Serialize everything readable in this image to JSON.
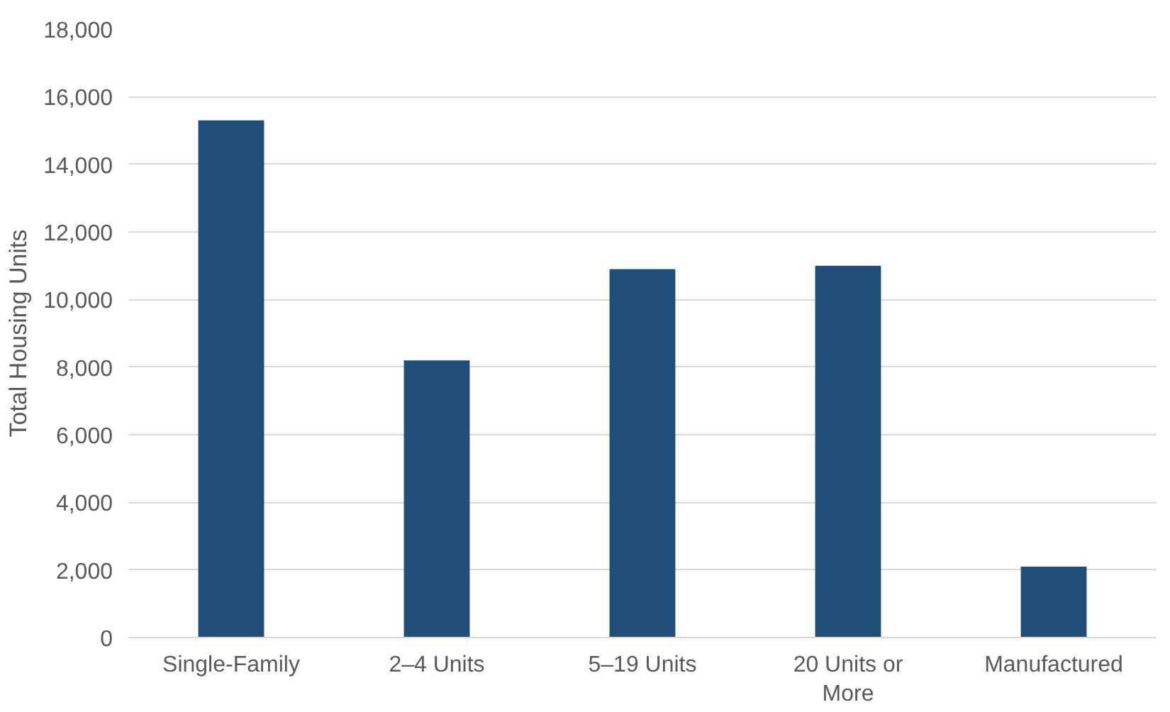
{
  "chart_data": {
    "type": "bar",
    "ylabel": "Total Housing Units",
    "categories": [
      "Single-Family",
      "2–4 Units",
      "5–19 Units",
      "20 Units or More",
      "Manufactured"
    ],
    "values": [
      15300,
      8200,
      10900,
      11000,
      2100
    ],
    "color": "#1f4e79",
    "ylim": [
      0,
      18000
    ],
    "yticks": [
      {
        "value": 0,
        "label": "0"
      },
      {
        "value": 2000,
        "label": "2,000"
      },
      {
        "value": 4000,
        "label": "4,000"
      },
      {
        "value": 6000,
        "label": "6,000"
      },
      {
        "value": 8000,
        "label": "8,000"
      },
      {
        "value": 10000,
        "label": "10,000"
      },
      {
        "value": 12000,
        "label": "12,000"
      },
      {
        "value": 14000,
        "label": "14,000"
      },
      {
        "value": 16000,
        "label": "16,000"
      },
      {
        "value": 18000,
        "label": "18,000"
      }
    ],
    "grid": "y"
  }
}
